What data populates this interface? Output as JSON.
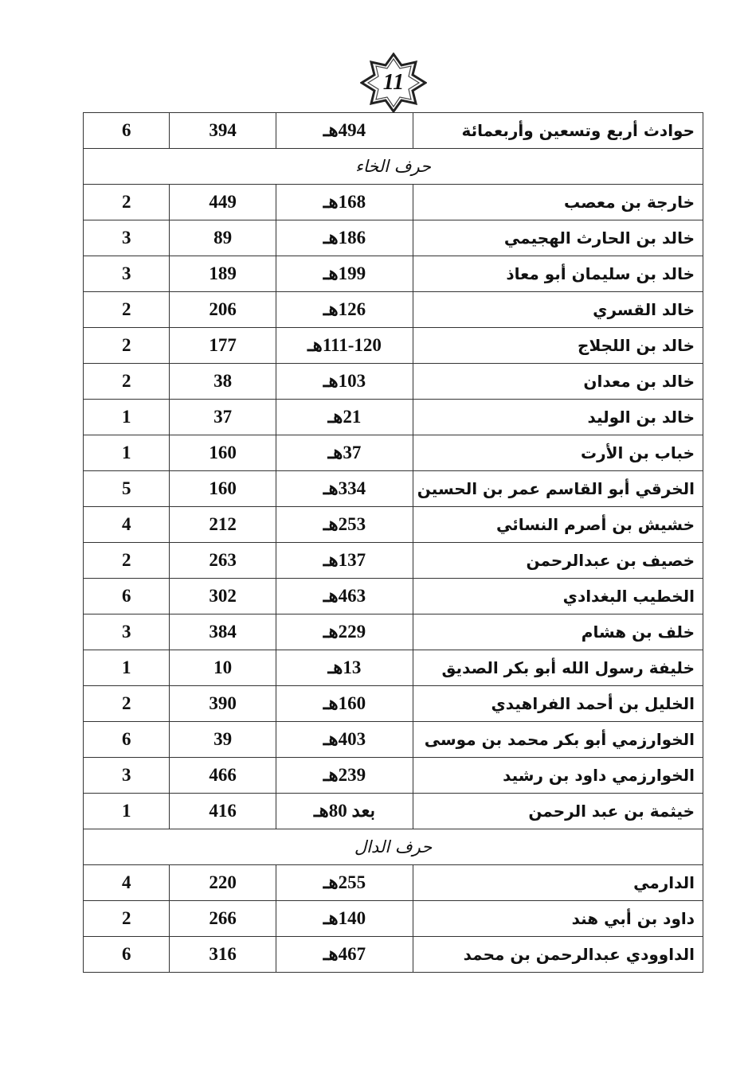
{
  "page_number": "11",
  "rows": [
    {
      "name": "حوادث أربع وتسعين وأربعمائة",
      "date": "494هـ",
      "page": "394",
      "vol": "6"
    },
    {
      "section": "حرف الخاء"
    },
    {
      "name": "خارجة بن معصب",
      "date": "168هـ",
      "page": "449",
      "vol": "2"
    },
    {
      "name": "خالد بن الحارث الهجيمي",
      "date": "186هـ",
      "page": "89",
      "vol": "3"
    },
    {
      "name": "خالد بن سليمان أبو معاذ",
      "date": "199هـ",
      "page": "189",
      "vol": "3"
    },
    {
      "name": "خالد القسري",
      "date": "126هـ",
      "page": "206",
      "vol": "2"
    },
    {
      "name": "خالد بن اللجلاج",
      "date": "111-120هـ",
      "page": "177",
      "vol": "2"
    },
    {
      "name": "خالد بن معدان",
      "date": "103هـ",
      "page": "38",
      "vol": "2"
    },
    {
      "name": "خالد بن الوليد",
      "date": "21هـ",
      "page": "37",
      "vol": "1"
    },
    {
      "name": "خباب بن الأرت",
      "date": "37هـ",
      "page": "160",
      "vol": "1"
    },
    {
      "name": "الخرقي أبو القاسم عمر بن الحسين",
      "date": "334هـ",
      "page": "160",
      "vol": "5"
    },
    {
      "name": "خشيش بن أصرم النسائي",
      "date": "253هـ",
      "page": "212",
      "vol": "4"
    },
    {
      "name": "خصيف بن عبدالرحمن",
      "date": "137هـ",
      "page": "263",
      "vol": "2"
    },
    {
      "name": "الخطيب البغدادي",
      "date": "463هـ",
      "page": "302",
      "vol": "6"
    },
    {
      "name": "خلف بن هشام",
      "date": "229هـ",
      "page": "384",
      "vol": "3"
    },
    {
      "name": "خليفة رسول الله أبو بكر الصديق",
      "date": "13هـ",
      "page": "10",
      "vol": "1"
    },
    {
      "name": "الخليل بن أحمد الفراهيدي",
      "date": "160هـ",
      "page": "390",
      "vol": "2"
    },
    {
      "name": "الخوارزمي أبو بكر محمد بن موسى",
      "date": "403هـ",
      "page": "39",
      "vol": "6"
    },
    {
      "name": "الخوارزمي داود بن رشيد",
      "date": "239هـ",
      "page": "466",
      "vol": "3"
    },
    {
      "name": "خيثمة بن عبد الرحمن",
      "date": "بعد 80هـ",
      "page": "416",
      "vol": "1"
    },
    {
      "section": "حرف الدال"
    },
    {
      "name": "الدارمي",
      "date": "255هـ",
      "page": "220",
      "vol": "4"
    },
    {
      "name": "داود بن أبي هند",
      "date": "140هـ",
      "page": "266",
      "vol": "2"
    },
    {
      "name": "الداوودي عبدالرحمن بن محمد",
      "date": "467هـ",
      "page": "316",
      "vol": "6"
    }
  ]
}
